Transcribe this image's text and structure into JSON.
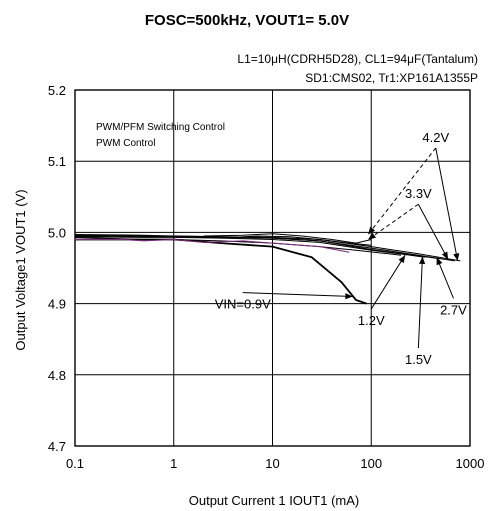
{
  "chart_data": {
    "type": "line",
    "title": "FOSC=500kHz, VOUT1= 5.0V",
    "subtitle_lines": [
      "L1=10μH(CDRH5D28), CL1=94μF(Tantalum)",
      "SD1:CMS02, Tr1:XP161A1355P"
    ],
    "xlabel": "Output Current 1 IOUT1 (mA)",
    "ylabel": "Output Voltage1 VOUT1 (V)",
    "x_scale": "log",
    "xlim": [
      0.1,
      1000
    ],
    "ylim": [
      4.7,
      5.2
    ],
    "x_ticks": [
      0.1,
      1,
      10,
      100,
      1000
    ],
    "x_tick_labels": [
      "0.1",
      "1",
      "10",
      "100",
      "1000"
    ],
    "y_ticks": [
      4.7,
      4.8,
      4.9,
      5.0,
      5.1,
      5.2
    ],
    "y_tick_labels": [
      "4.7",
      "4.8",
      "4.9",
      "5.0",
      "5.1",
      "5.2"
    ],
    "grid": true,
    "legend_lines": [
      "PWM/PFM Switching Control",
      "PWM  Control"
    ],
    "series": [
      {
        "color": "#000000",
        "x": [
          0.1,
          0.5,
          1,
          3,
          10,
          25,
          50,
          70,
          90
        ],
        "y": [
          4.99,
          4.99,
          4.99,
          4.985,
          4.98,
          4.965,
          4.93,
          4.905,
          4.9
        ]
      },
      {
        "color": "#000000",
        "x": [
          0.1,
          0.5,
          1,
          3,
          10,
          30,
          70,
          150,
          200
        ],
        "y": [
          4.993,
          4.99,
          4.99,
          4.988,
          4.985,
          4.98,
          4.975,
          4.97,
          4.968
        ]
      },
      {
        "color": "#000000",
        "x": [
          0.1,
          0.5,
          1,
          3,
          10,
          30,
          100,
          250,
          350
        ],
        "y": [
          4.994,
          4.993,
          4.993,
          4.992,
          4.99,
          4.986,
          4.975,
          4.968,
          4.965
        ]
      },
      {
        "color": "#000000",
        "x": [
          0.1,
          0.5,
          1,
          3,
          10,
          30,
          100,
          300,
          500
        ],
        "y": [
          4.995,
          4.994,
          4.994,
          4.993,
          4.992,
          4.988,
          4.976,
          4.967,
          4.963
        ]
      },
      {
        "color": "#000000",
        "x": [
          0.1,
          0.5,
          1,
          3,
          10,
          30,
          100,
          300,
          700
        ],
        "y": [
          4.996,
          4.995,
          4.995,
          4.994,
          4.992,
          4.988,
          4.978,
          4.968,
          4.96
        ]
      },
      {
        "color": "#000000",
        "x": [
          0.1,
          0.5,
          1,
          3,
          10,
          30,
          100,
          300,
          800
        ],
        "y": [
          4.997,
          4.996,
          4.995,
          4.994,
          4.993,
          4.99,
          4.98,
          4.97,
          4.96
        ]
      },
      {
        "color": "#7a2a7a",
        "x": [
          0.1,
          0.3,
          0.5,
          1,
          2,
          5,
          10,
          30,
          60
        ],
        "y": [
          4.99,
          4.99,
          4.988,
          4.99,
          4.986,
          4.988,
          4.985,
          4.98,
          4.972
        ]
      },
      {
        "color": "#000000",
        "x": [
          2,
          5,
          10,
          20,
          40,
          70,
          100
        ],
        "y": [
          4.995,
          4.996,
          4.998,
          4.995,
          4.99,
          4.985,
          4.99
        ]
      },
      {
        "color": "#000000",
        "x": [
          3,
          7,
          15,
          30,
          60,
          100
        ],
        "y": [
          4.992,
          4.995,
          4.994,
          4.99,
          4.985,
          4.982
        ]
      }
    ],
    "annotations": [
      {
        "label": "4.2V",
        "text_x": 450,
        "text_y": 5.127,
        "targets": [
          {
            "x": 93,
            "y": 4.997,
            "dashed": true
          },
          {
            "x": 750,
            "y": 4.96,
            "dashed": false
          }
        ]
      },
      {
        "label": "3.3V",
        "text_x": 300,
        "text_y": 5.048,
        "targets": [
          {
            "x": 93,
            "y": 4.99,
            "dashed": true
          },
          {
            "x": 600,
            "y": 4.962,
            "dashed": false
          }
        ]
      },
      {
        "label": "VIN=0.9V",
        "text_x": 5,
        "text_y": 4.893,
        "targets": [
          {
            "x": 65,
            "y": 4.91,
            "dashed": false
          }
        ]
      },
      {
        "label": "1.2V",
        "text_x": 100,
        "text_y": 4.87,
        "targets": [
          {
            "x": 220,
            "y": 4.968,
            "dashed": false
          }
        ]
      },
      {
        "label": "2.7V",
        "text_x": 680,
        "text_y": 4.885,
        "targets": [
          {
            "x": 460,
            "y": 4.965,
            "dashed": false
          }
        ]
      },
      {
        "label": "1.5V",
        "text_x": 300,
        "text_y": 4.815,
        "targets": [
          {
            "x": 330,
            "y": 4.966,
            "dashed": false
          }
        ]
      }
    ]
  }
}
